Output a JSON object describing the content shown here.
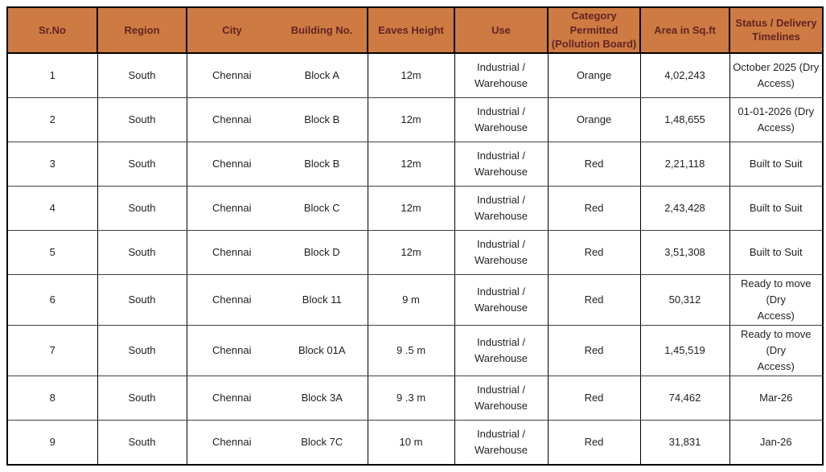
{
  "colors": {
    "header_bg": "#CE7B43",
    "header_text": "#632423",
    "border_outer": "#000000",
    "row_divider": "#3f3f3f",
    "cell_text": "#1f1f1f"
  },
  "table": {
    "column_keys": [
      "sr_no",
      "region",
      "city",
      "building_no",
      "eaves_height",
      "use",
      "category",
      "area_sqft",
      "status"
    ],
    "columns": [
      "Sr.No",
      "Region",
      "City",
      "Building No.",
      "Eaves Height",
      "Use",
      "Category Permitted\n(Pollution Board)",
      "Area in Sq.ft",
      "Status / Delivery\nTimelines"
    ],
    "rows": [
      {
        "sr_no": "1",
        "region": "South",
        "city": "Chennai",
        "building_no": "Block A",
        "eaves_height": "12m",
        "use": "Industrial /\nWarehouse",
        "category": "Orange",
        "area_sqft": "4,02,243",
        "status": "October 2025  (Dry\nAccess)"
      },
      {
        "sr_no": "2",
        "region": "South",
        "city": "Chennai",
        "building_no": "Block B",
        "eaves_height": "12m",
        "use": "Industrial /\nWarehouse",
        "category": "Orange",
        "area_sqft": "1,48,655",
        "status": "01-01-2026 (Dry\nAccess)"
      },
      {
        "sr_no": "3",
        "region": "South",
        "city": "Chennai",
        "building_no": "Block B",
        "eaves_height": "12m",
        "use": "Industrial /\nWarehouse",
        "category": "Red",
        "area_sqft": "2,21,118",
        "status": "Built to Suit"
      },
      {
        "sr_no": "4",
        "region": "South",
        "city": "Chennai",
        "building_no": "Block C",
        "eaves_height": "12m",
        "use": "Industrial /\nWarehouse",
        "category": "Red",
        "area_sqft": "2,43,428",
        "status": "Built to Suit"
      },
      {
        "sr_no": "5",
        "region": "South",
        "city": "Chennai",
        "building_no": "Block D",
        "eaves_height": "12m",
        "use": "Industrial /\nWarehouse",
        "category": "Red",
        "area_sqft": "3,51,308",
        "status": "Built to Suit"
      },
      {
        "sr_no": "6",
        "region": "South",
        "city": "Chennai",
        "building_no": "Block 11",
        "eaves_height": "9 m",
        "use": "Industrial /\nWarehouse",
        "category": "Red",
        "area_sqft": "50,312",
        "status": "Ready to move (Dry\nAccess)"
      },
      {
        "sr_no": "7",
        "region": "South",
        "city": "Chennai",
        "building_no": "Block 01A",
        "eaves_height": "9 .5 m",
        "use": "Industrial /\nWarehouse",
        "category": "Red",
        "area_sqft": "1,45,519",
        "status": "Ready to move (Dry\nAccess)"
      },
      {
        "sr_no": "8",
        "region": "South",
        "city": "Chennai",
        "building_no": "Block 3A",
        "eaves_height": "9 .3 m",
        "use": "Industrial /\nWarehouse",
        "category": "Red",
        "area_sqft": "74,462",
        "status": "Mar-26"
      },
      {
        "sr_no": "9",
        "region": "South",
        "city": "Chennai",
        "building_no": "Block 7C",
        "eaves_height": "10 m",
        "use": "Industrial /\nWarehouse",
        "category": "Red",
        "area_sqft": "31,831",
        "status": "Jan-26"
      }
    ]
  }
}
